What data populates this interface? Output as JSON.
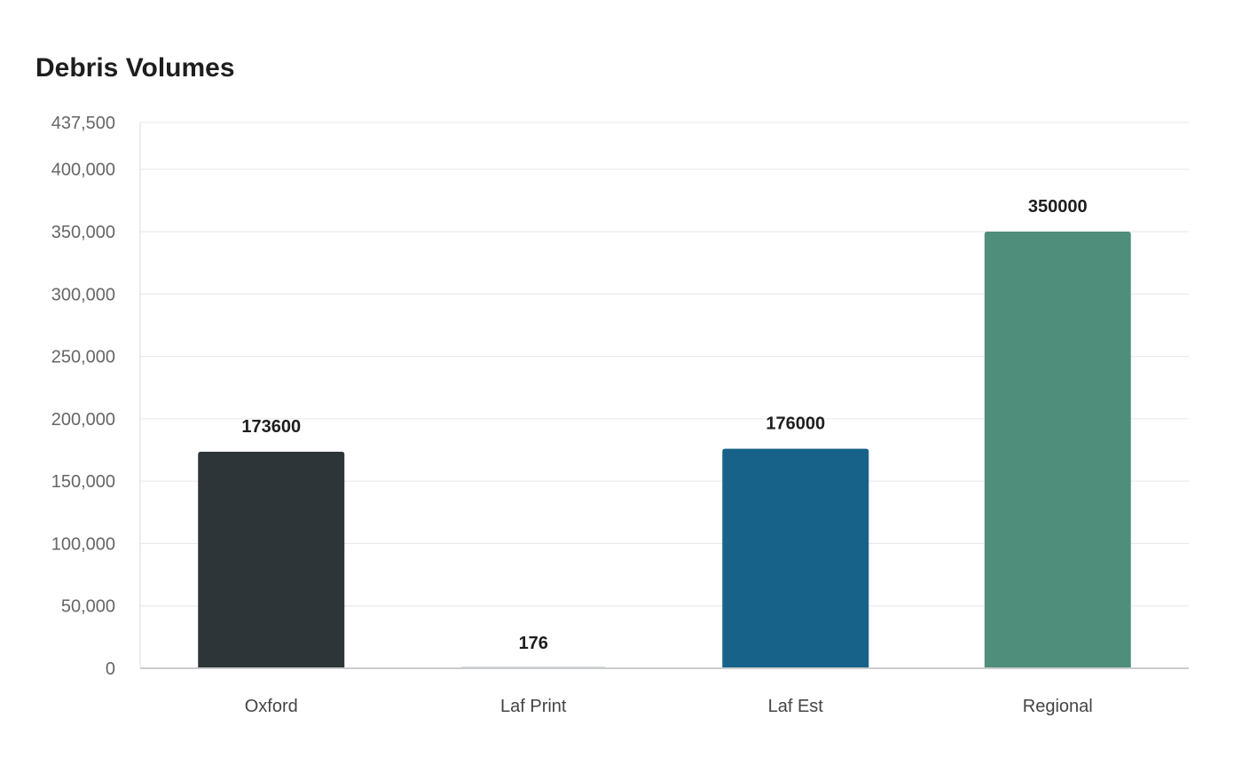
{
  "chart_data": {
    "type": "bar",
    "title": "Debris Volumes",
    "xlabel": "",
    "ylabel": "",
    "categories": [
      "Oxford",
      "Laf Print",
      "Laf Est",
      "Regional"
    ],
    "values": [
      173600,
      176,
      176000,
      350000
    ],
    "colors": [
      "#2d3538",
      "#9fb0b8",
      "#176289",
      "#4e8e7b"
    ],
    "ylim": [
      0,
      437500
    ],
    "yticks": [
      0,
      50000,
      100000,
      150000,
      200000,
      250000,
      300000,
      350000,
      400000,
      437500
    ],
    "ytick_labels": [
      "0",
      "50,000",
      "100,000",
      "150,000",
      "200,000",
      "250,000",
      "300,000",
      "350,000",
      "400,000",
      "437,500"
    ],
    "data_labels": [
      "173600",
      "176",
      "176000",
      "350000"
    ],
    "grid": true,
    "legend": "none"
  }
}
